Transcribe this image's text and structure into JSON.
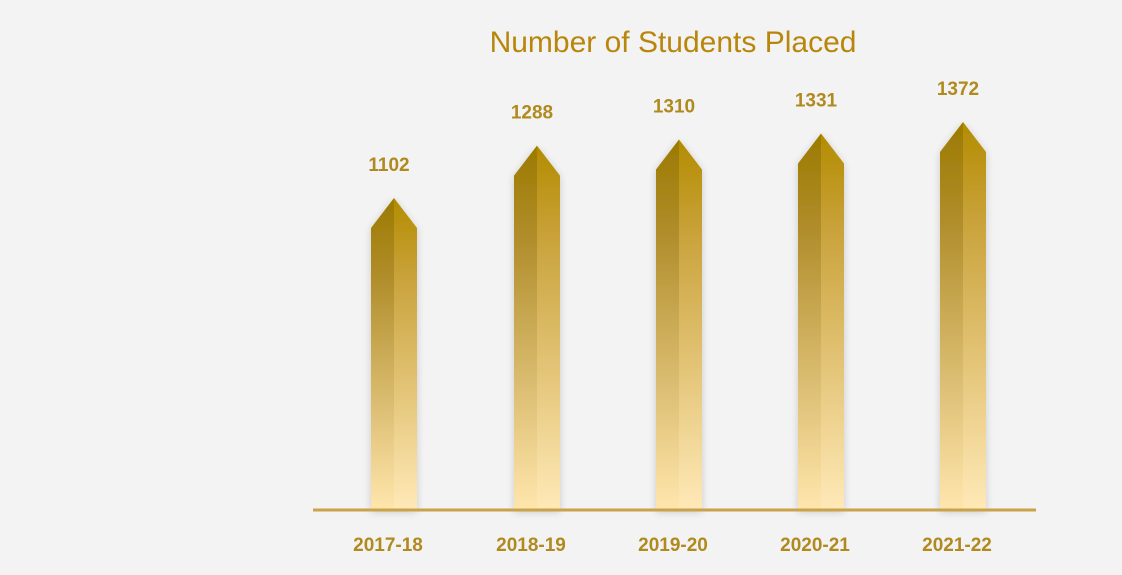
{
  "chart_data": {
    "type": "bar",
    "title": "Number of Students Placed",
    "categories": [
      "2017-18",
      "2018-19",
      "2019-20",
      "2020-21",
      "2021-22"
    ],
    "values": [
      1102,
      1288,
      1310,
      1331,
      1372
    ],
    "xlabel": "",
    "ylabel": "",
    "ylim": [
      0,
      1400
    ],
    "grid": false,
    "legend": "none",
    "data_labels": [
      "1102",
      "1288",
      "1310",
      "1331",
      "1372"
    ],
    "colors": {
      "bar_top": "#9c7a00",
      "bar_mid": "#c9a23a",
      "bar_bottom": "#ffe6ad",
      "text": "#b08a1e",
      "title": "#b8860b",
      "axis": "#c9a24a",
      "background": "#f3f3f3"
    }
  }
}
